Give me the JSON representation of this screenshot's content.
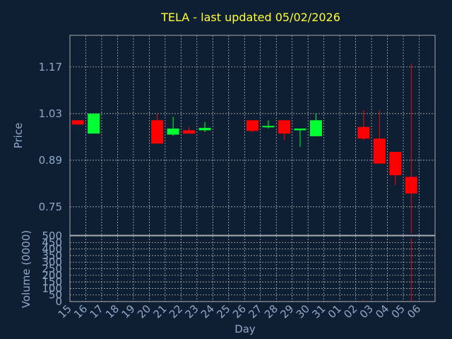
{
  "chart_data": {
    "type": "candlestick",
    "title": "TELA - last updated 05/02/2026",
    "xlabel": "Day",
    "price_panel": {
      "ylabel": "Price",
      "y_ticks": [
        "0.75",
        "0.89",
        "1.03",
        "1.17"
      ],
      "ylim": [
        0.665,
        1.265
      ],
      "grid": true
    },
    "volume_panel": {
      "ylabel": "Volume (0000)",
      "y_ticks": [
        "0",
        "50",
        "100",
        "150",
        "200",
        "250",
        "300",
        "350",
        "400",
        "450",
        "500"
      ],
      "ylim": [
        0,
        500
      ],
      "grid": true
    },
    "x_labels": [
      "15",
      "16",
      "17",
      "18",
      "19",
      "20",
      "21",
      "22",
      "23",
      "24",
      "25",
      "26",
      "27",
      "28",
      "29",
      "30",
      "31",
      "01",
      "02",
      "03",
      "04",
      "05",
      "06"
    ],
    "candles": [
      {
        "day": "15",
        "open": 1.01,
        "close": 0.997,
        "high": 1.01,
        "low": 0.997
      },
      {
        "day": "16",
        "open": 0.97,
        "close": 1.03,
        "high": 1.03,
        "low": 0.97
      },
      {
        "day": "20",
        "open": 1.01,
        "close": 0.94,
        "high": 1.03,
        "low": 0.94
      },
      {
        "day": "21",
        "open": 0.967,
        "close": 0.985,
        "high": 1.02,
        "low": 0.963
      },
      {
        "day": "22",
        "open": 0.98,
        "close": 0.97,
        "high": 0.99,
        "low": 0.97
      },
      {
        "day": "23",
        "open": 0.98,
        "close": 0.987,
        "high": 1.005,
        "low": 0.975
      },
      {
        "day": "26",
        "open": 1.01,
        "close": 0.978,
        "high": 1.01,
        "low": 0.974
      },
      {
        "day": "27",
        "open": 0.99,
        "close": 0.993,
        "high": 1.01,
        "low": 0.985
      },
      {
        "day": "28",
        "open": 1.01,
        "close": 0.97,
        "high": 1.01,
        "low": 0.95
      },
      {
        "day": "29",
        "open": 0.98,
        "close": 0.985,
        "high": 0.985,
        "low": 0.93
      },
      {
        "day": "30",
        "open": 0.962,
        "close": 1.01,
        "high": 1.03,
        "low": 0.962
      },
      {
        "day": "02",
        "open": 0.99,
        "close": 0.955,
        "high": 1.04,
        "low": 0.95
      },
      {
        "day": "03",
        "open": 0.955,
        "close": 0.88,
        "high": 1.04,
        "low": 0.88
      },
      {
        "day": "04",
        "open": 0.915,
        "close": 0.845,
        "high": 0.915,
        "low": 0.815
      },
      {
        "day": "05",
        "open": 0.84,
        "close": 0.79,
        "high": 1.18,
        "low": 0.67
      }
    ],
    "volume": [
      {
        "day": "02",
        "value": 15
      },
      {
        "day": "05",
        "value": 480
      }
    ],
    "colors": {
      "background": "#0f1f33",
      "up": "#00ff33",
      "down": "#ff0000",
      "grid": "#c8c8c8",
      "title": "#ffff33",
      "axis_text": "#8fa8c8"
    }
  }
}
